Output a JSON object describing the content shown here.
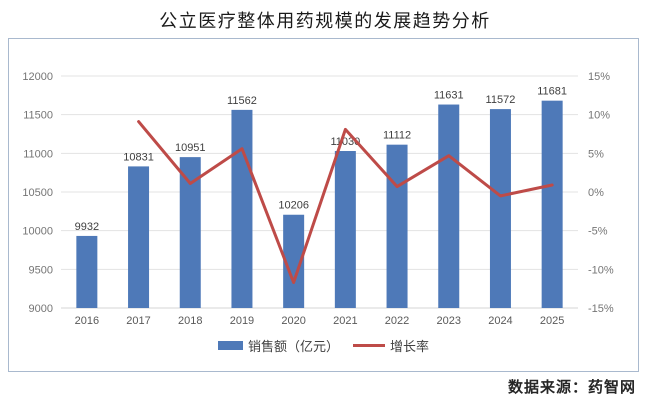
{
  "title": "公立医疗整体用药规模的发展趋势分析",
  "source": "数据来源：药智网",
  "legend": {
    "bar_label": "销售额（亿元）",
    "line_label": "增长率"
  },
  "colors": {
    "bar": "#4e79b8",
    "line": "#be4b48",
    "grid": "#e3e3e3",
    "axis_line": "#d6d6d6",
    "axis_label": "#757575",
    "x_label": "#595959",
    "value_label": "#3f3f3f",
    "border": "#a9b9ce"
  },
  "chart_data": {
    "type": "bar",
    "title": "公立医疗整体用药规模的发展趋势分析",
    "categories": [
      "2016",
      "2017",
      "2018",
      "2019",
      "2020",
      "2021",
      "2022",
      "2023",
      "2024",
      "2025"
    ],
    "series": [
      {
        "name": "销售额（亿元）",
        "type": "bar",
        "axis": "left",
        "values": [
          9932,
          10831,
          10951,
          11562,
          10206,
          11030,
          11112,
          11631,
          11572,
          11681
        ],
        "labels": [
          "9932",
          "10831",
          "10951",
          "11562",
          "10206",
          "11030",
          "11112",
          "11631",
          "11572",
          "11681"
        ]
      },
      {
        "name": "增长率",
        "type": "line",
        "axis": "right",
        "values": [
          null,
          9.1,
          1.1,
          5.6,
          -11.7,
          8.1,
          0.7,
          4.7,
          -0.5,
          0.9
        ]
      }
    ],
    "left_axis": {
      "min": 9000,
      "max": 12000,
      "tick_values": [
        9000,
        9500,
        10000,
        10500,
        11000,
        11500,
        12000
      ],
      "tick_labels": [
        "9000",
        "9500",
        "10000",
        "10500",
        "11000",
        "11500",
        "12000"
      ]
    },
    "right_axis": {
      "min": -15,
      "max": 15,
      "tick_values": [
        -15,
        -10,
        -5,
        0,
        5,
        10,
        15
      ],
      "tick_labels": [
        "-15%",
        "-10%",
        "-5%",
        "0%",
        "5%",
        "10%",
        "15%"
      ]
    },
    "grid": true,
    "legend_position": "bottom"
  }
}
